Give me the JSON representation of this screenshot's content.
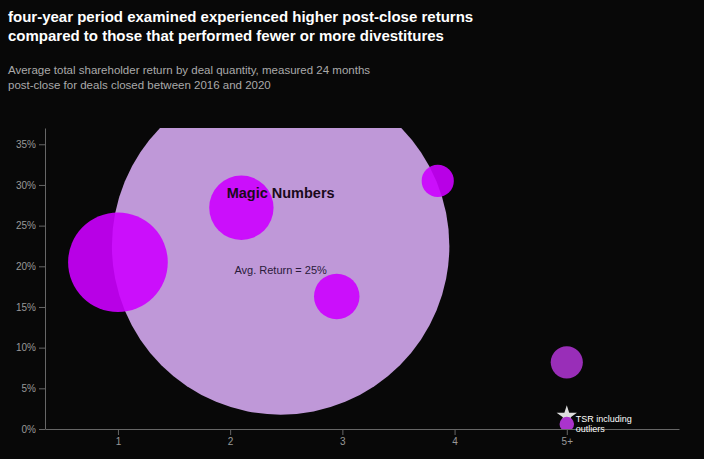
{
  "chart_data": {
    "type": "bubble",
    "title": [
      "four-year period examined experienced higher post-close returns",
      "compared to those that performed fewer or more divestitures"
    ],
    "subtitle": [
      "Average total shareholder return by deal quantity, measured 24 months",
      "post-close for deals closed between 2016 and 2020"
    ],
    "series": [
      {
        "x": [
          1.0,
          2.45,
          2.1,
          2.95,
          3.85,
          5.0
        ],
        "values": [
          0.205,
          0.225,
          0.272,
          0.163,
          0.305,
          0.082
        ],
        "sizes": [
          4800,
          55000,
          2000,
          1000,
          500,
          500
        ],
        "colors": [
          "#cc00ff",
          "#d4a8f0",
          "#cc00ff",
          "#cc00ff",
          "#cc00ff",
          "#aa33cc"
        ],
        "marker": "circle"
      },
      {
        "x": [
          5.0
        ],
        "values": [
          0.016
        ],
        "marker": "star",
        "color": "#dddddd"
      },
      {
        "x": [
          5.0
        ],
        "values": [
          0.006
        ],
        "marker": "circle",
        "color": "#aa33cc"
      }
    ],
    "annotations": [
      {
        "text": "Magic Numbers",
        "x": 2.45,
        "y": 0.29
      },
      {
        "text": "Avg. Return = 25%",
        "x": 2.45,
        "y": 0.195
      },
      {
        "text": "TSR including\noutliers",
        "x": 5.08,
        "y": 0.006
      }
    ],
    "xlim": [
      0.35,
      6.0
    ],
    "xticks": [
      1,
      2,
      3,
      4,
      {
        "value": 5,
        "label": "5+"
      }
    ],
    "ylim": [
      0,
      0.37
    ],
    "yticks": [
      {
        "value": 0.0,
        "label": "0%"
      },
      {
        "value": 0.05,
        "label": "5%"
      },
      {
        "value": 0.1,
        "label": "10%"
      },
      {
        "value": 0.15,
        "label": "15%"
      },
      {
        "value": 0.2,
        "label": "20%"
      },
      {
        "value": 0.25,
        "label": "25%"
      },
      {
        "value": 0.3,
        "label": "30%"
      },
      {
        "value": 0.35,
        "label": "35%"
      }
    ],
    "grid": false
  }
}
